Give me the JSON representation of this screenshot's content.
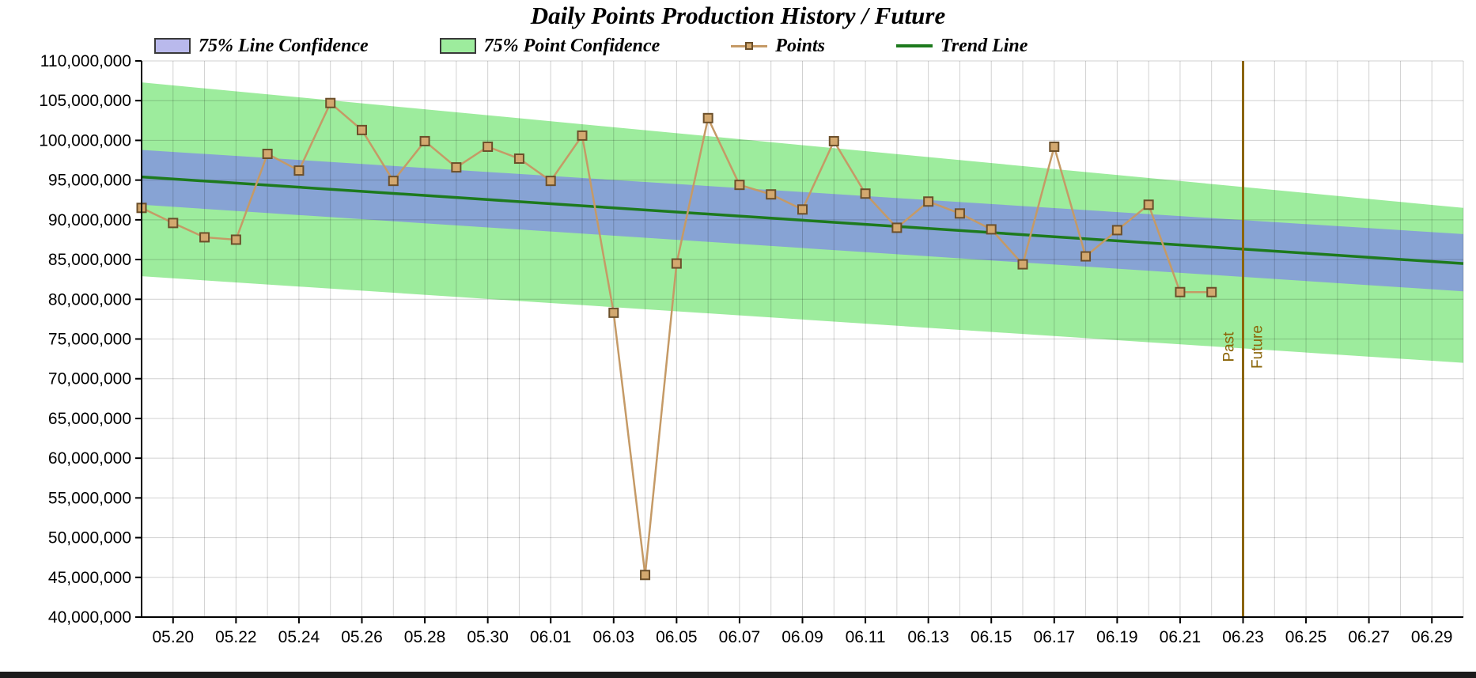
{
  "title": "Daily Points Production History / Future",
  "legend": {
    "items": [
      {
        "label": "75% Line Confidence",
        "swatch": "blue-band"
      },
      {
        "label": "75% Point Confidence",
        "swatch": "green-band"
      },
      {
        "label": "Points",
        "swatch": "tan-line-with-square-marker"
      },
      {
        "label": "Trend Line",
        "swatch": "green-line"
      }
    ]
  },
  "colors": {
    "line_confidence_fill": "#87a3d4",
    "line_confidence_legend": "#b9b9ec",
    "point_confidence_fill": "#9dec9d",
    "points_line": "#c59a66",
    "points_marker_fill": "#d3a86f",
    "points_marker_border": "#6b4f2a",
    "trend_line": "#1d7a1d",
    "divider_line": "#8b6508",
    "grid": "rgba(0,0,0,0.18)",
    "axis": "#000000"
  },
  "chart_data": {
    "type": "line",
    "title": "Daily Points Production History / Future",
    "xlabel": "",
    "ylabel": "",
    "ylim": [
      40000000,
      110000000
    ],
    "y_tick_step": 5000000,
    "y_ticks": [
      40000000,
      45000000,
      50000000,
      55000000,
      60000000,
      65000000,
      70000000,
      75000000,
      80000000,
      85000000,
      90000000,
      95000000,
      100000000,
      105000000,
      110000000
    ],
    "x_domain": [
      "05.19",
      "06.30"
    ],
    "x_tick_labels": [
      "05.20",
      "05.22",
      "05.24",
      "05.26",
      "05.28",
      "05.30",
      "06.01",
      "06.03",
      "06.05",
      "06.07",
      "06.09",
      "06.11",
      "06.13",
      "06.15",
      "06.17",
      "06.19",
      "06.21",
      "06.23",
      "06.25",
      "06.27",
      "06.29"
    ],
    "grid": true,
    "legend_position": "top",
    "series": [
      {
        "name": "Points",
        "type": "line+marker",
        "dates": [
          "05.19",
          "05.20",
          "05.21",
          "05.22",
          "05.23",
          "05.24",
          "05.25",
          "05.26",
          "05.27",
          "05.28",
          "05.29",
          "05.30",
          "05.31",
          "06.01",
          "06.02",
          "06.03",
          "06.04",
          "06.05",
          "06.06",
          "06.07",
          "06.08",
          "06.09",
          "06.10",
          "06.11",
          "06.12",
          "06.13",
          "06.14",
          "06.15",
          "06.16",
          "06.17",
          "06.18",
          "06.19",
          "06.20",
          "06.21",
          "06.22"
        ],
        "values": [
          91500000,
          89600000,
          87800000,
          87500000,
          98300000,
          96200000,
          104700000,
          101300000,
          94900000,
          99900000,
          96600000,
          99200000,
          97700000,
          94900000,
          100600000,
          78300000,
          45300000,
          84500000,
          102800000,
          94400000,
          93200000,
          91300000,
          99900000,
          93300000,
          89000000,
          92300000,
          90800000,
          88800000,
          84400000,
          99200000,
          85400000,
          88700000,
          91900000,
          80900000,
          80900000
        ]
      },
      {
        "name": "Trend Line",
        "type": "line",
        "dates": [
          "05.19",
          "06.30"
        ],
        "values": [
          95400000,
          84500000
        ]
      }
    ],
    "bands": [
      {
        "name": "75% Line Confidence",
        "x": [
          "05.19",
          "06.30"
        ],
        "top": [
          98800000,
          88200000
        ],
        "bottom": [
          91900000,
          81000000
        ]
      },
      {
        "name": "75% Point Confidence",
        "x": [
          "05.19",
          "06.30"
        ],
        "top": [
          107300000,
          91500000
        ],
        "bottom": [
          82900000,
          72000000
        ]
      }
    ],
    "divider": {
      "date": "06.23",
      "labels": [
        "Past",
        "Future"
      ]
    }
  }
}
